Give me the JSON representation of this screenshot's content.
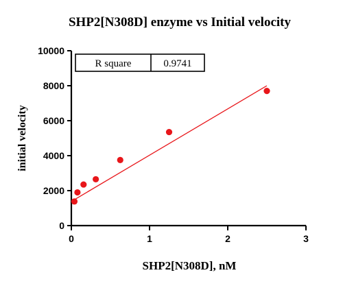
{
  "chart_data": {
    "type": "scatter",
    "title": "SHP2[N308D] enzyme vs Initial velocity",
    "xlabel": "SHP2[N308D], nM",
    "ylabel": "initial velocity",
    "xlim": [
      0,
      3
    ],
    "ylim": [
      0,
      10000
    ],
    "x_ticks": [
      0,
      1,
      2,
      3
    ],
    "y_ticks": [
      0,
      2000,
      4000,
      6000,
      8000,
      10000
    ],
    "x_tick_labels": [
      "0",
      "1",
      "2",
      "3"
    ],
    "y_tick_labels": [
      "0",
      "2000",
      "4000",
      "6000",
      "8000",
      "10000"
    ],
    "grid": false,
    "series": [
      {
        "x": [
          0.039,
          0.078,
          0.156,
          0.3125,
          0.625,
          1.25,
          2.5
        ],
        "y": [
          1380,
          1900,
          2350,
          2650,
          3750,
          5350,
          7700
        ],
        "color": "#e8161a"
      }
    ],
    "fit_line": {
      "x": [
        0,
        2.5
      ],
      "y": [
        1380,
        8000
      ],
      "color": "#e8161a"
    },
    "annotation": {
      "label": "R square",
      "value": "0.9741"
    }
  }
}
